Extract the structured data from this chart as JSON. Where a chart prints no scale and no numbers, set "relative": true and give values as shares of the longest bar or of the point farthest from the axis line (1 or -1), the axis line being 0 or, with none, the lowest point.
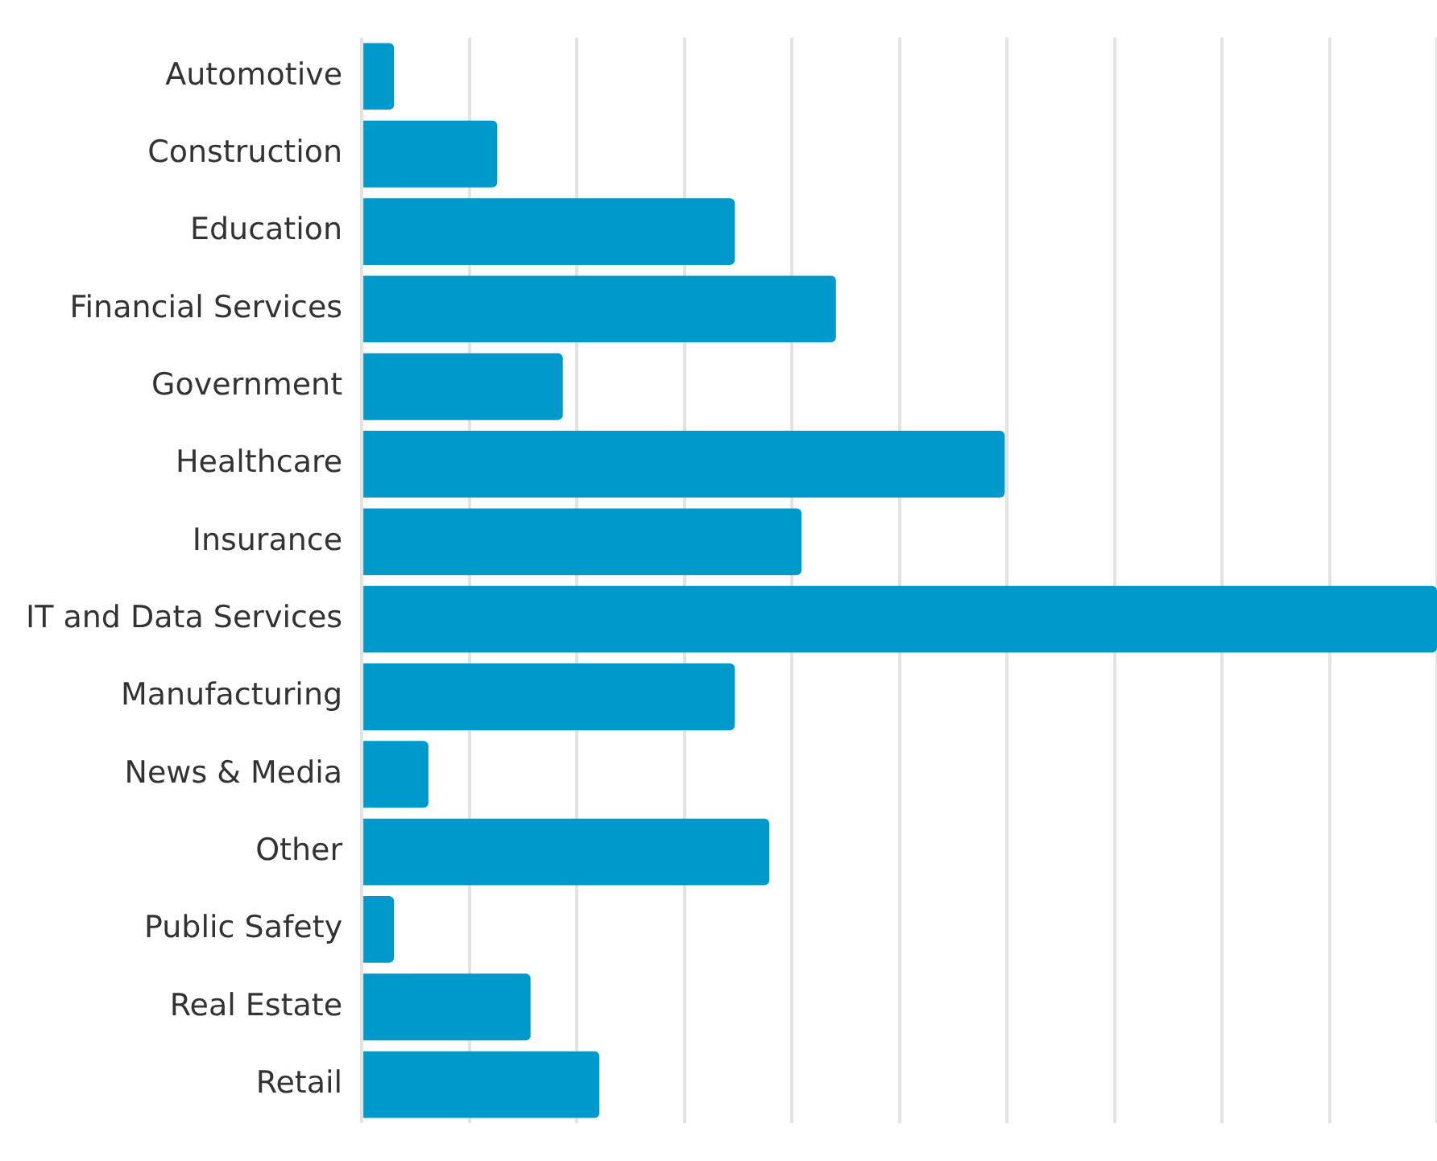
{
  "chart_data": {
    "type": "bar",
    "orientation": "horizontal",
    "relative": true,
    "grid": "x",
    "color": "#0099cc",
    "categories": [
      "Automotive",
      "Construction",
      "Education",
      "Financial Services",
      "Government",
      "Healthcare",
      "Insurance",
      "IT and Data Services",
      "Manufacturing",
      "News & Media",
      "Other",
      "Public Safety",
      "Real Estate",
      "Retail"
    ],
    "values": [
      0.03,
      0.126,
      0.347,
      0.441,
      0.187,
      0.598,
      0.409,
      1,
      0.347,
      0.062,
      0.379,
      0.03,
      0.157,
      0.221
    ]
  }
}
